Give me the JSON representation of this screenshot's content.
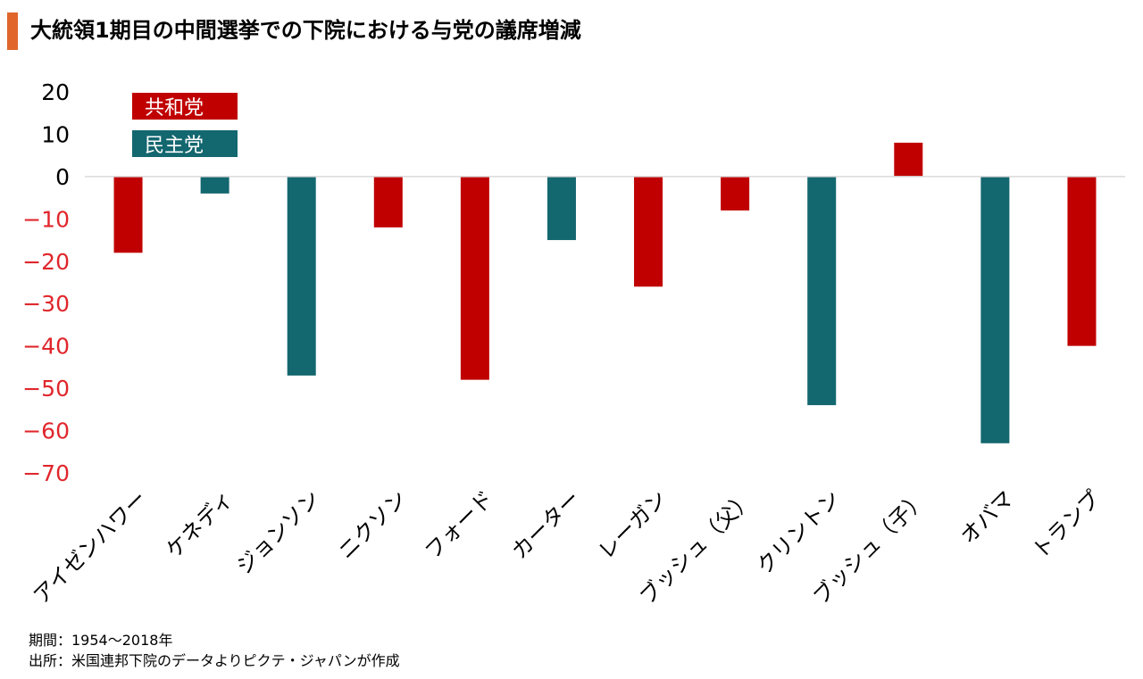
{
  "title": "大統領1期目の中間選挙での下院における与党の議席増減",
  "footer": {
    "period": "期間：1954～2018年",
    "source": "出所：米国連邦下院のデータよりピクテ・ジャパンが作成"
  },
  "colors": {
    "republican": "#c00000",
    "democrat": "#13676f",
    "positive_tick": "#000000",
    "negative_tick": "#e0262b",
    "title_accent": "#e0662b"
  },
  "chart_data": {
    "type": "bar",
    "title": "大統領1期目の中間選挙での下院における与党の議席増減",
    "xlabel": "",
    "ylabel": "",
    "ylim": [
      -70,
      20
    ],
    "yticks": [
      20,
      10,
      0,
      -10,
      -20,
      -30,
      -40,
      -50,
      -60,
      -70
    ],
    "grid": false,
    "legend": {
      "placement": "top-left",
      "entries": [
        {
          "label": "共和党",
          "party": "republican"
        },
        {
          "label": "民主党",
          "party": "democrat"
        }
      ]
    },
    "categories": [
      "アイゼンハワー",
      "ケネディ",
      "ジョンソン",
      "ニクソン",
      "フォード",
      "カーター",
      "レーガン",
      "ブッシュ（父）",
      "クリントン",
      "ブッシュ（子）",
      "オバマ",
      "トランプ"
    ],
    "values": [
      -18,
      -4,
      -47,
      -12,
      -48,
      -15,
      -26,
      -8,
      -54,
      8,
      -63,
      -40
    ],
    "parties": [
      "republican",
      "democrat",
      "democrat",
      "republican",
      "republican",
      "democrat",
      "republican",
      "republican",
      "democrat",
      "republican",
      "democrat",
      "republican"
    ]
  }
}
